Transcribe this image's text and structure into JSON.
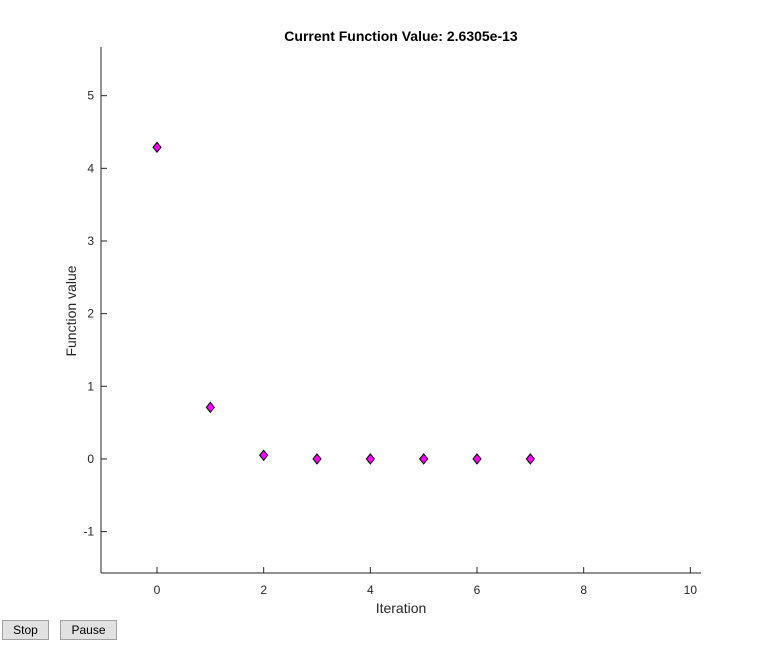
{
  "buttons": {
    "stop_label": "Stop",
    "pause_label": "Pause"
  },
  "chart_data": {
    "type": "scatter",
    "title": "Current Function Value: 2.6305e-13",
    "xlabel": "Iteration",
    "ylabel": "Function value",
    "xlim": [
      -1.05,
      10.2
    ],
    "ylim": [
      -1.57,
      5.67
    ],
    "xticks": [
      0,
      2,
      4,
      6,
      8,
      10
    ],
    "yticks": [
      -1,
      0,
      1,
      2,
      3,
      4,
      5
    ],
    "grid": false,
    "marker": "diamond",
    "marker_color": "#ff00ff",
    "marker_edge_color": "#000000",
    "axis_color": "#262626",
    "x": [
      0,
      1,
      2,
      3,
      4,
      5,
      6,
      7
    ],
    "y": [
      4.29,
      0.71,
      0.05,
      0.0,
      0.0,
      0.0,
      0.0,
      0.0
    ]
  }
}
